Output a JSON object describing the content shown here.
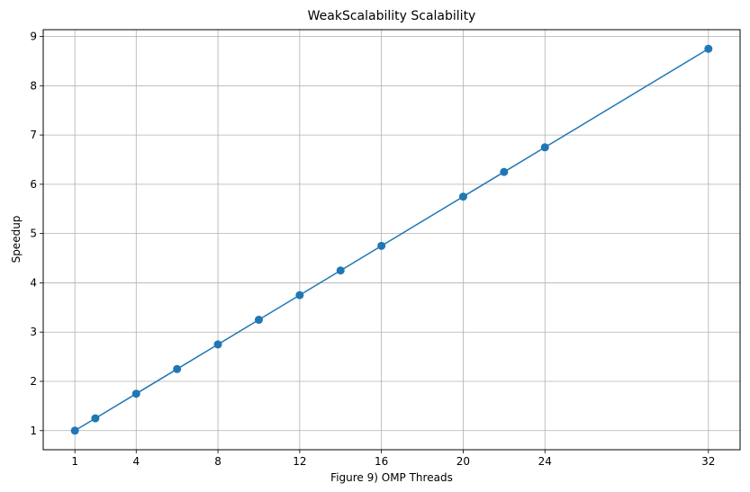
{
  "chart_data": {
    "type": "line",
    "title": "WeakScalability Scalability",
    "xlabel": "Figure 9) OMP Threads",
    "ylabel": "Speedup",
    "x": [
      1,
      2,
      4,
      6,
      8,
      10,
      12,
      14,
      16,
      20,
      22,
      24,
      32
    ],
    "y": [
      1.0,
      1.25,
      1.75,
      2.25,
      2.75,
      3.25,
      3.75,
      4.25,
      4.75,
      5.75,
      6.25,
      6.75,
      8.75
    ],
    "xticks": [
      1,
      4,
      8,
      12,
      16,
      20,
      24,
      32
    ],
    "yticks": [
      1,
      2,
      3,
      4,
      5,
      6,
      7,
      8,
      9
    ],
    "xlim": [
      -0.55,
      33.55
    ],
    "ylim": [
      0.6125,
      9.1375
    ],
    "grid": true,
    "colors": {
      "series": "#1f77b4",
      "grid": "#b0b0b0",
      "axes": "#000000"
    }
  }
}
